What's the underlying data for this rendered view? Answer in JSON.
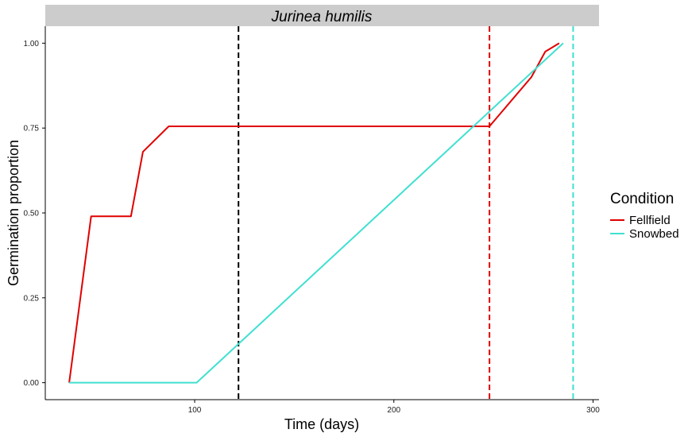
{
  "chart_data": {
    "type": "line",
    "title": "Jurinea humilis",
    "xlabel": "Time (days)",
    "ylabel": "Germination proportion",
    "xlim": [
      25,
      303
    ],
    "ylim": [
      -0.05,
      1.05
    ],
    "x_ticks": [
      100,
      200,
      300
    ],
    "x_tick_labels": [
      "100",
      "200",
      "300"
    ],
    "y_ticks": [
      0,
      0.25,
      0.5,
      0.75,
      1.0
    ],
    "y_tick_labels": [
      "0.00",
      "0.25",
      "0.50",
      "0.75",
      "1.00"
    ],
    "grid": false,
    "legend": {
      "title": "Condition",
      "position": "right"
    },
    "series": [
      {
        "name": "Fellfield",
        "color": "#e00000",
        "x": [
          37,
          48,
          68,
          74,
          87,
          248,
          269,
          276,
          283
        ],
        "y": [
          0.0,
          0.49,
          0.49,
          0.68,
          0.755,
          0.755,
          0.9,
          0.975,
          1.0
        ]
      },
      {
        "name": "Snowbed",
        "color": "#40e0d0",
        "x": [
          37,
          101,
          285
        ],
        "y": [
          0.0,
          0.0,
          1.0
        ]
      }
    ],
    "vlines": [
      {
        "x": 122,
        "color": "#000000",
        "style": "dashed"
      },
      {
        "x": 248,
        "color": "#e00000",
        "style": "dashed"
      },
      {
        "x": 290,
        "color": "#40e0d0",
        "style": "dashed"
      }
    ]
  }
}
